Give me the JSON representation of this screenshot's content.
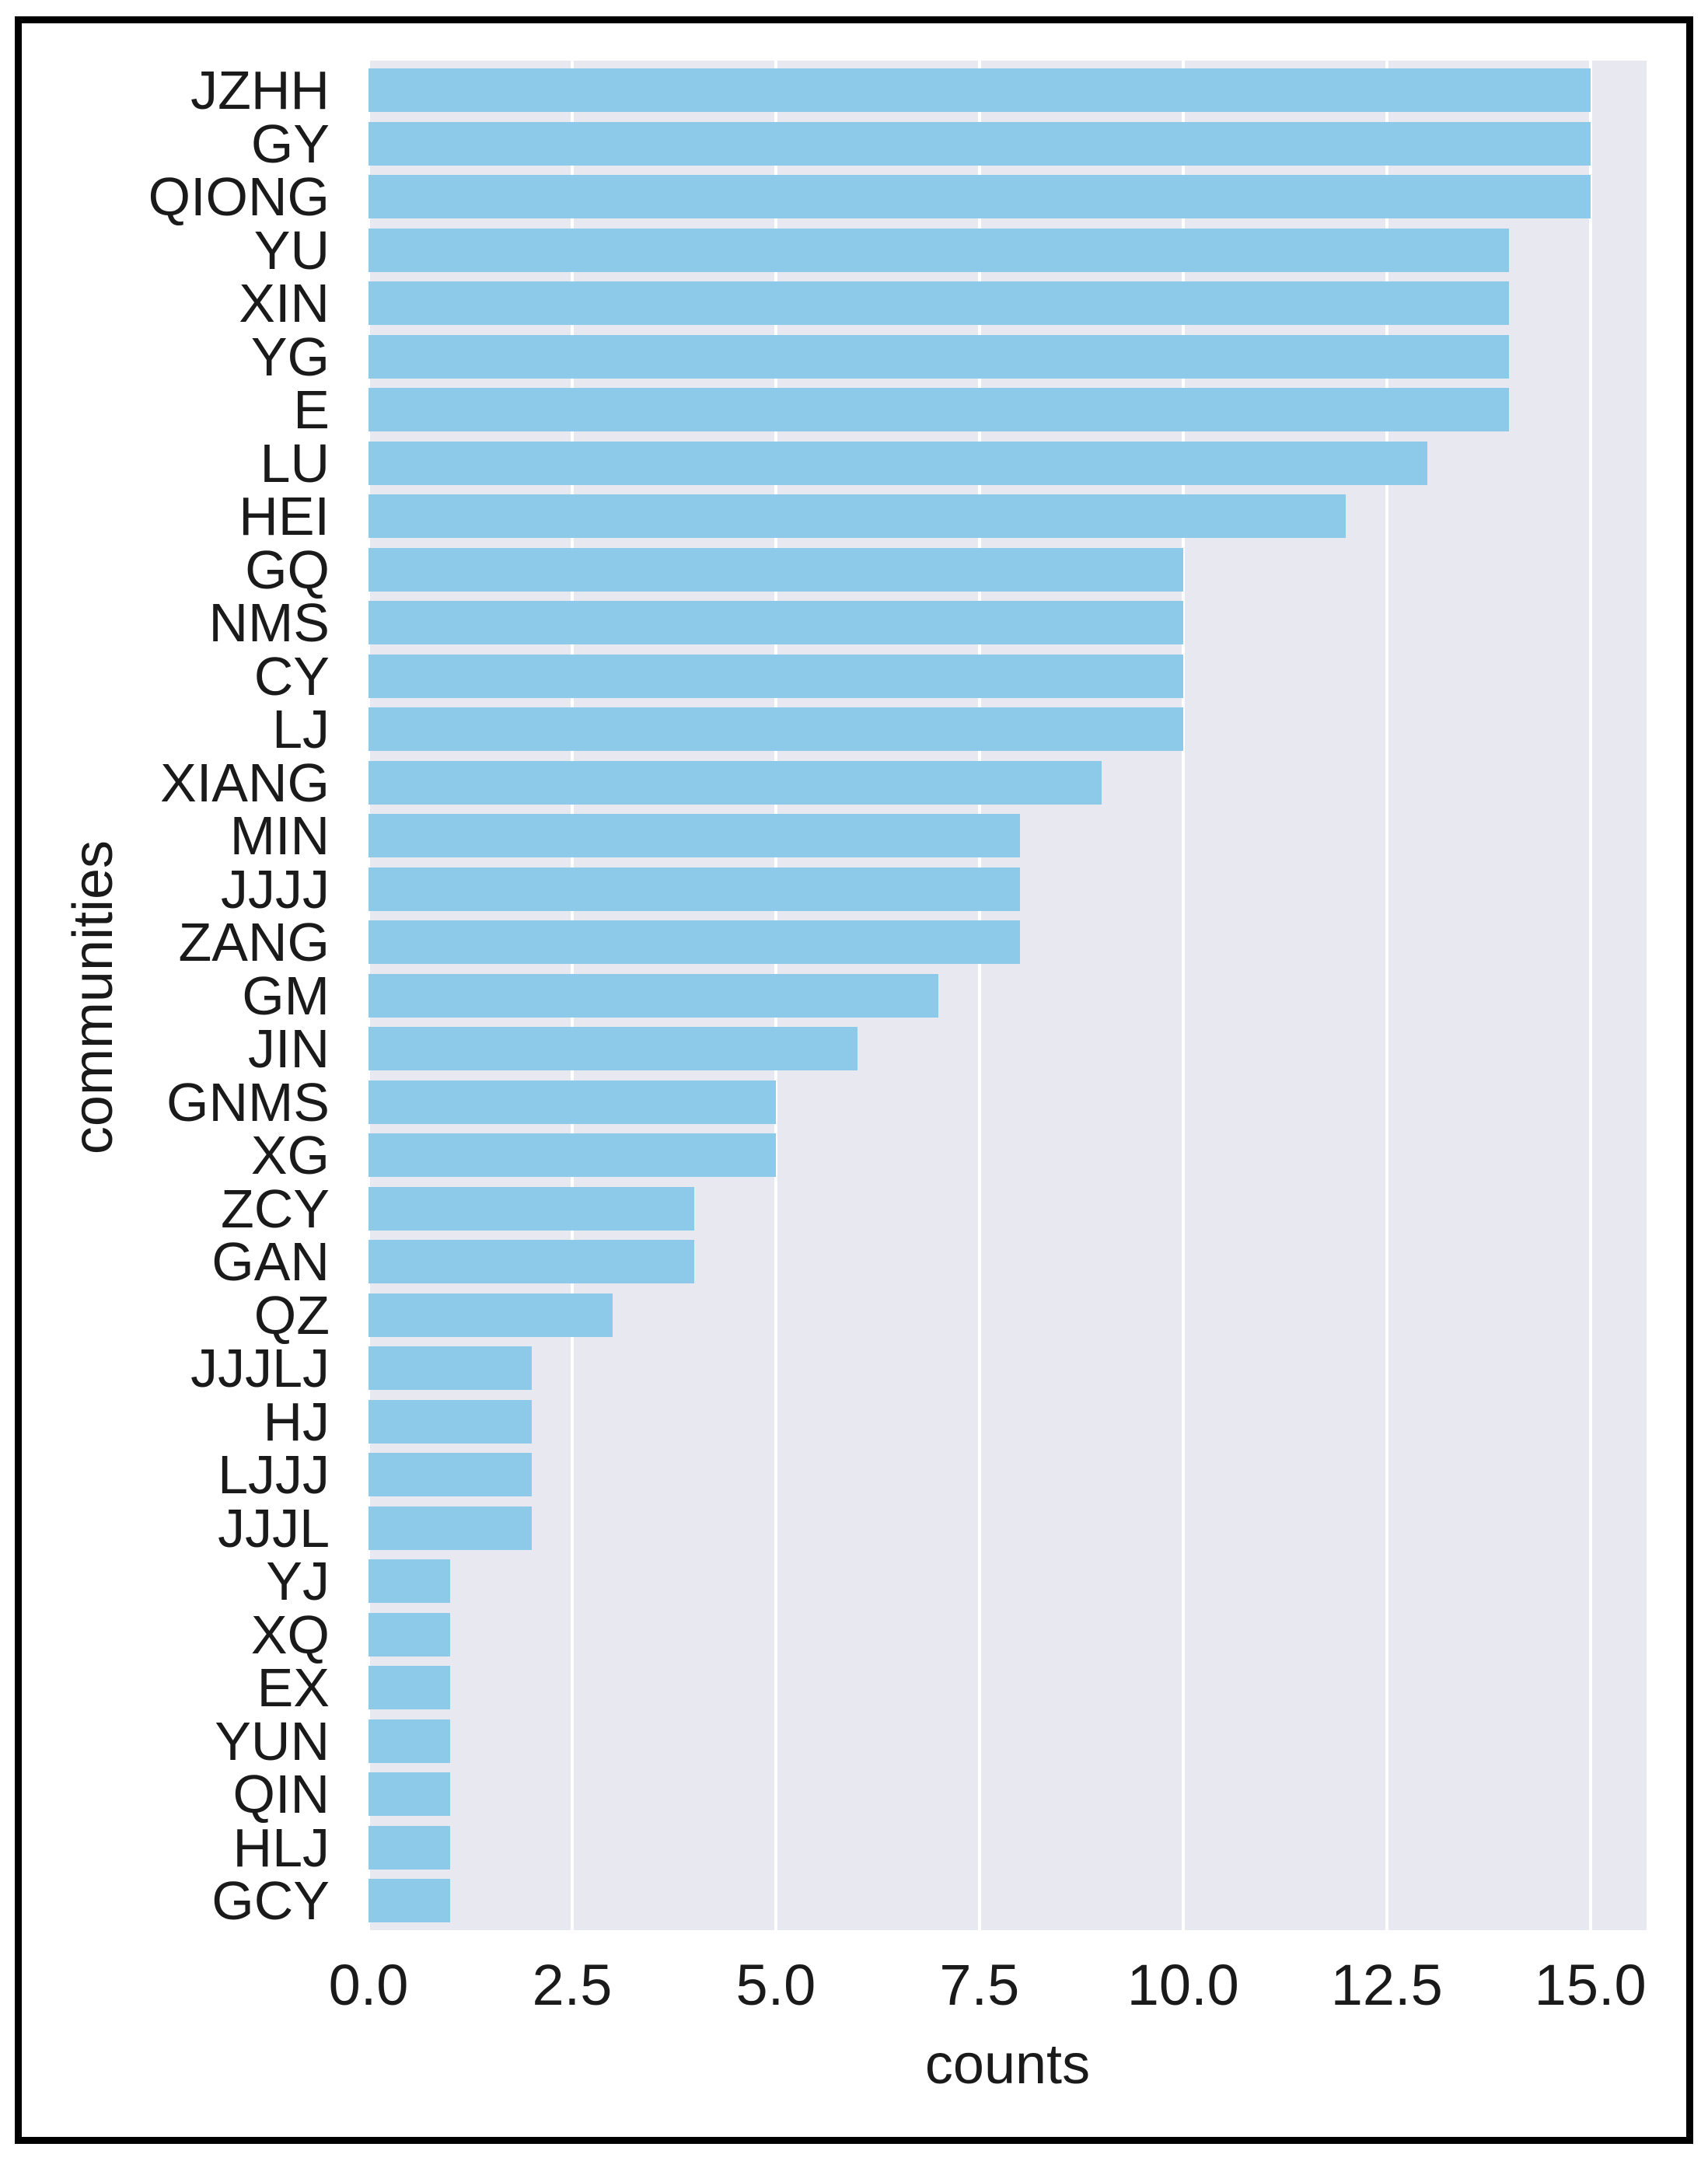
{
  "chart_data": {
    "type": "bar",
    "orientation": "horizontal",
    "title": "",
    "xlabel": "counts",
    "ylabel": "communities",
    "categories": [
      "JZHH",
      "GY",
      "QIONG",
      "YU",
      "XIN",
      "YG",
      "E",
      "LU",
      "HEI",
      "GQ",
      "NMS",
      "CY",
      "LJ",
      "XIANG",
      "MIN",
      "JJJJ",
      "ZANG",
      "GM",
      "JIN",
      "GNMS",
      "XG",
      "ZCY",
      "GAN",
      "QZ",
      "JJJLJ",
      "HJ",
      "LJJJ",
      "JJJL",
      "YJ",
      "XQ",
      "EX",
      "YUN",
      "QIN",
      "HLJ",
      "GCY"
    ],
    "values": [
      15,
      15,
      15,
      14,
      14,
      14,
      14,
      13,
      12,
      10,
      10,
      10,
      10,
      9,
      8,
      8,
      8,
      7,
      6,
      5,
      5,
      4,
      4,
      3,
      2,
      2,
      2,
      2,
      1,
      1,
      1,
      1,
      1,
      1,
      1
    ],
    "xlim": [
      0,
      15.69
    ],
    "xticks": [
      0,
      2.5,
      5,
      7.5,
      10,
      12.5,
      15
    ],
    "xtick_labels": [
      "0.0",
      "2.5",
      "5.0",
      "7.5",
      "10.0",
      "12.5",
      "15.0"
    ],
    "grid": true,
    "legend": false,
    "bar_color": "#8dcae9",
    "plot_bg": "#e8e8f0",
    "grid_color": "#ffffff",
    "text_color": "#1a1a1a",
    "frame_color": "#000000"
  }
}
